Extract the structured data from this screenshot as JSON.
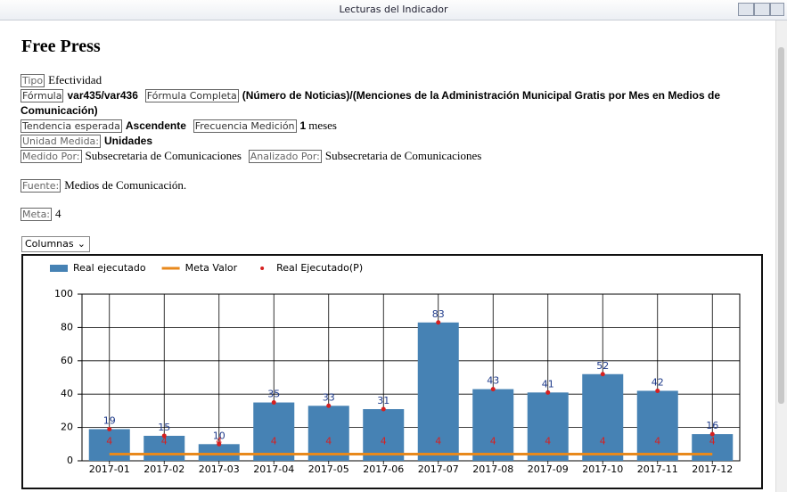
{
  "window": {
    "title": "Lecturas del Indicador"
  },
  "header": {
    "title": "Free Press"
  },
  "fields": {
    "tipo": {
      "label": "Tipo",
      "value": "Efectividad"
    },
    "formula": {
      "label": "Fórmula",
      "value": "var435/var436"
    },
    "formula_completa": {
      "label": "Fórmula Completa",
      "value": "(Número de Noticias)/(Menciones de la Administración Municipal Gratis por Mes en Medios de Comunicación)"
    },
    "tendencia": {
      "label": "Tendencia esperada",
      "value": "Ascendente"
    },
    "frecuencia": {
      "label": "Frecuencia Medición",
      "value": "1",
      "unit": "meses"
    },
    "unidad": {
      "label": "Unidad Medida:",
      "value": "Unidades"
    },
    "medido": {
      "label": "Medido Por:",
      "value": "Subsecretaria de Comunicaciones"
    },
    "analizado": {
      "label": "Analizado Por:",
      "value": "Subsecretaria de Comunicaciones"
    },
    "fuente": {
      "label": "Fuente:",
      "value": "Medios de Comunicación."
    },
    "meta": {
      "label": "Meta:",
      "value": "4"
    }
  },
  "selector": "Columnas",
  "chart_data": {
    "type": "bar",
    "categories": [
      "2017-01",
      "2017-02",
      "2017-03",
      "2017-04",
      "2017-05",
      "2017-06",
      "2017-07",
      "2017-08",
      "2017-09",
      "2017-10",
      "2017-11",
      "2017-12"
    ],
    "series": [
      {
        "name": "Real ejecutado",
        "type": "bar",
        "color": "#4682b4",
        "values": [
          19,
          15,
          10,
          35,
          33,
          31,
          83,
          43,
          41,
          52,
          42,
          16
        ]
      },
      {
        "name": "Meta Valor",
        "type": "line",
        "color": "#e8891c",
        "values": [
          4,
          4,
          4,
          4,
          4,
          4,
          4,
          4,
          4,
          4,
          4,
          4
        ]
      },
      {
        "name": "Real Ejecutado(P)",
        "type": "scatter",
        "color": "#d62020",
        "values": [
          19,
          15,
          10,
          35,
          33,
          31,
          83,
          43,
          41,
          52,
          42,
          16
        ]
      }
    ],
    "ylim": [
      0,
      100
    ],
    "yticks": [
      0,
      20,
      40,
      60,
      80,
      100
    ],
    "grid": true,
    "legend": "top-left"
  }
}
